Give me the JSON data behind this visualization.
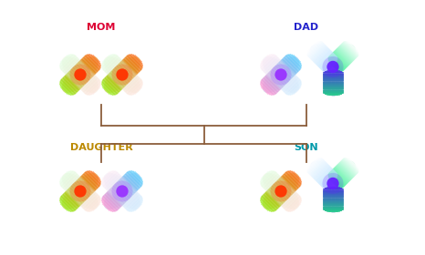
{
  "labels": {
    "mom": "MOM",
    "dad": "DAD",
    "daughter": "DAUGHTER",
    "son": "SON"
  },
  "label_colors": {
    "mom": "#dd0033",
    "dad": "#2222cc",
    "daughter": "#bb8800",
    "son": "#0099aa"
  },
  "tree_color": "#8B5E3C",
  "background": "#ffffff"
}
